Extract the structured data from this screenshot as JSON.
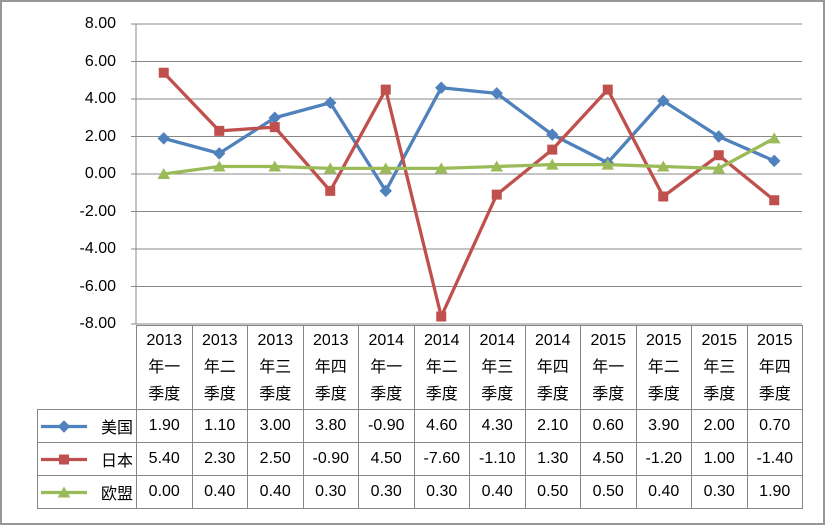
{
  "frame": {
    "background": "#ffffff",
    "border_color": "#979797"
  },
  "chart_data": {
    "type": "line",
    "title": "",
    "categories": [
      "2013年一季度",
      "2013年二季度",
      "2013年三季度",
      "2013年四季度",
      "2014年一季度",
      "2014年二季度",
      "2014年三季度",
      "2014年四季度",
      "2015年一季度",
      "2015年二季度",
      "2015年三季度",
      "2015年四季度"
    ],
    "series": [
      {
        "key": "us",
        "name": "美国",
        "color": "#4F81BD",
        "marker": "diamond",
        "values": [
          1.9,
          1.1,
          3.0,
          3.8,
          -0.9,
          4.6,
          4.3,
          2.1,
          0.6,
          3.9,
          2.0,
          0.7
        ]
      },
      {
        "key": "japan",
        "name": "日本",
        "color": "#C0504D",
        "marker": "square",
        "values": [
          5.4,
          2.3,
          2.5,
          -0.9,
          4.5,
          -7.6,
          -1.1,
          1.3,
          4.5,
          -1.2,
          1.0,
          -1.4
        ]
      },
      {
        "key": "eu",
        "name": "欧盟",
        "color": "#9BBB59",
        "marker": "triangle",
        "values": [
          0.0,
          0.4,
          0.4,
          0.3,
          0.3,
          0.3,
          0.4,
          0.5,
          0.5,
          0.4,
          0.3,
          1.9
        ]
      }
    ],
    "ylim": [
      -8,
      8
    ],
    "ytick_interval": 2,
    "ytick_labels": [
      "8.00",
      "6.00",
      "4.00",
      "2.00",
      "0.00",
      "-2.00",
      "-4.00",
      "-6.00",
      "-8.00"
    ],
    "grid": true,
    "gridline_color": "#888888",
    "axis_color": "#888888",
    "legend_position": "data-table-left",
    "value_format": "0.00"
  },
  "data_table": {
    "border_color": "#878787",
    "rows": [
      {
        "label": "美国",
        "cells": [
          "1.90",
          "1.10",
          "3.00",
          "3.80",
          "-0.90",
          "4.60",
          "4.30",
          "2.10",
          "0.60",
          "3.90",
          "2.00",
          "0.70"
        ]
      },
      {
        "label": "日本",
        "cells": [
          "5.40",
          "2.30",
          "2.50",
          "-0.90",
          "4.50",
          "-7.60",
          "-1.10",
          "1.30",
          "4.50",
          "-1.20",
          "1.00",
          "-1.40"
        ]
      },
      {
        "label": "欧盟",
        "cells": [
          "0.00",
          "0.40",
          "0.40",
          "0.30",
          "0.30",
          "0.30",
          "0.40",
          "0.50",
          "0.50",
          "0.40",
          "0.30",
          "1.90"
        ]
      }
    ]
  }
}
